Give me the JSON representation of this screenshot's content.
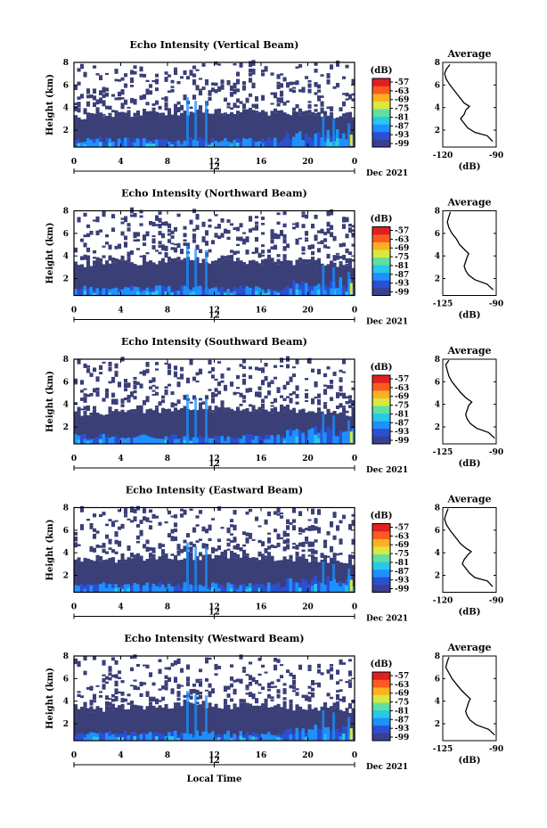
{
  "figure": {
    "xlabel": "Local Time",
    "date_label": "Dec 2021",
    "colorbar_unit": "(dB)",
    "profile_title": "Average",
    "profile_xlabel": "(dB)"
  },
  "chart_data": [
    {
      "type": "heatmap",
      "title": "Echo Intensity (Vertical Beam)",
      "ylabel": "Height (km)",
      "xlabel": "",
      "x_ticks": [
        "0",
        "4",
        "8",
        "12",
        "16",
        "20",
        "0"
      ],
      "x_ticks_values": [
        0,
        4,
        8,
        12,
        16,
        20,
        24
      ],
      "day_ticks": [
        "12"
      ],
      "xlim": [
        0,
        24
      ],
      "y_ticks": [
        "2",
        "4",
        "6",
        "8"
      ],
      "ylim": [
        0.5,
        8
      ],
      "colorbar_ticks": [
        "-57",
        "-63",
        "-69",
        "-75",
        "-81",
        "-87",
        "-93",
        "-99"
      ],
      "profile": {
        "title": "Average",
        "xlabel": "(dB)",
        "x_ticks": [
          "-120",
          "-90"
        ],
        "xlim": [
          -120,
          -90
        ],
        "y_ticks": [
          "2",
          "4",
          "6",
          "8"
        ],
        "ylim": [
          0.5,
          8
        ],
        "values": [
          [
            -92,
            1
          ],
          [
            -95,
            1.5
          ],
          [
            -102,
            1.8
          ],
          [
            -106,
            2.2
          ],
          [
            -108,
            2.6
          ],
          [
            -110,
            3
          ],
          [
            -108,
            3.4
          ],
          [
            -107,
            3.8
          ],
          [
            -105,
            4.1
          ],
          [
            -108,
            4.4
          ],
          [
            -110,
            4.8
          ],
          [
            -112,
            5.2
          ],
          [
            -114,
            5.6
          ],
          [
            -116,
            6
          ],
          [
            -118,
            6.5
          ],
          [
            -119,
            7
          ],
          [
            -118,
            7.4
          ],
          [
            -116,
            7.8
          ]
        ]
      }
    },
    {
      "type": "heatmap",
      "title": "Echo Intensity (Northward Beam)",
      "ylabel": "Height (km)",
      "xlabel": "",
      "x_ticks": [
        "0",
        "4",
        "8",
        "12",
        "16",
        "20",
        "0"
      ],
      "x_ticks_values": [
        0,
        4,
        8,
        12,
        16,
        20,
        24
      ],
      "day_ticks": [
        "12"
      ],
      "xlim": [
        0,
        24
      ],
      "y_ticks": [
        "2",
        "4",
        "6",
        "8"
      ],
      "ylim": [
        0.5,
        8
      ],
      "colorbar_ticks": [
        "-57",
        "-63",
        "-69",
        "-75",
        "-81",
        "-87",
        "-93",
        "-99"
      ],
      "profile": {
        "title": "Average",
        "xlabel": "(dB)",
        "x_ticks": [
          "-125",
          "-90"
        ],
        "xlim": [
          -125,
          -90
        ],
        "y_ticks": [
          "2",
          "4",
          "6",
          "8"
        ],
        "ylim": [
          0.5,
          8
        ],
        "values": [
          [
            -92,
            1
          ],
          [
            -96,
            1.5
          ],
          [
            -104,
            1.9
          ],
          [
            -108,
            2.3
          ],
          [
            -110,
            2.7
          ],
          [
            -111,
            3.1
          ],
          [
            -110,
            3.5
          ],
          [
            -109,
            3.9
          ],
          [
            -108,
            4.2
          ],
          [
            -111,
            4.6
          ],
          [
            -114,
            5
          ],
          [
            -116,
            5.5
          ],
          [
            -119,
            6
          ],
          [
            -121,
            6.5
          ],
          [
            -122,
            7
          ],
          [
            -121,
            7.5
          ],
          [
            -120,
            7.9
          ]
        ]
      }
    },
    {
      "type": "heatmap",
      "title": "Echo Intensity (Southward Beam)",
      "ylabel": "Height (km)",
      "xlabel": "",
      "x_ticks": [
        "0",
        "4",
        "8",
        "12",
        "16",
        "20",
        "0"
      ],
      "x_ticks_values": [
        0,
        4,
        8,
        12,
        16,
        20,
        24
      ],
      "day_ticks": [
        "12"
      ],
      "xlim": [
        0,
        24
      ],
      "y_ticks": [
        "2",
        "4",
        "6",
        "8"
      ],
      "ylim": [
        0.5,
        8
      ],
      "colorbar_ticks": [
        "-57",
        "-63",
        "-69",
        "-75",
        "-81",
        "-87",
        "-93",
        "-99"
      ],
      "profile": {
        "title": "Average",
        "xlabel": "(dB)",
        "x_ticks": [
          "-125",
          "-90"
        ],
        "xlim": [
          -125,
          -90
        ],
        "y_ticks": [
          "2",
          "4",
          "6",
          "8"
        ],
        "ylim": [
          0.5,
          8
        ],
        "values": [
          [
            -91,
            1
          ],
          [
            -95,
            1.5
          ],
          [
            -103,
            1.9
          ],
          [
            -107,
            2.3
          ],
          [
            -109,
            2.7
          ],
          [
            -110,
            3.1
          ],
          [
            -109,
            3.5
          ],
          [
            -108,
            3.9
          ],
          [
            -106,
            4.2
          ],
          [
            -110,
            4.6
          ],
          [
            -113,
            5
          ],
          [
            -116,
            5.5
          ],
          [
            -119,
            6
          ],
          [
            -121,
            6.5
          ],
          [
            -122,
            7
          ],
          [
            -123,
            7.5
          ],
          [
            -121,
            7.9
          ]
        ]
      }
    },
    {
      "type": "heatmap",
      "title": "Echo Intensity (Eastward Beam)",
      "ylabel": "Height (km)",
      "xlabel": "",
      "x_ticks": [
        "0",
        "4",
        "8",
        "12",
        "16",
        "20",
        "0"
      ],
      "x_ticks_values": [
        0,
        4,
        8,
        12,
        16,
        20,
        24
      ],
      "day_ticks": [
        "12"
      ],
      "xlim": [
        0,
        24
      ],
      "y_ticks": [
        "2",
        "4",
        "6",
        "8"
      ],
      "ylim": [
        0.5,
        8
      ],
      "colorbar_ticks": [
        "-57",
        "-63",
        "-69",
        "-75",
        "-81",
        "-87",
        "-93",
        "-99"
      ],
      "profile": {
        "title": "Average",
        "xlabel": "(dB)",
        "x_ticks": [
          "-120",
          "-90"
        ],
        "xlim": [
          -120,
          -90
        ],
        "y_ticks": [
          "2",
          "4",
          "6",
          "8"
        ],
        "ylim": [
          0.5,
          8
        ],
        "values": [
          [
            -92,
            1
          ],
          [
            -95,
            1.5
          ],
          [
            -102,
            1.8
          ],
          [
            -105,
            2.2
          ],
          [
            -107,
            2.6
          ],
          [
            -109,
            3
          ],
          [
            -108,
            3.4
          ],
          [
            -106,
            3.8
          ],
          [
            -104,
            4.1
          ],
          [
            -107,
            4.4
          ],
          [
            -110,
            4.8
          ],
          [
            -112,
            5.2
          ],
          [
            -114,
            5.6
          ],
          [
            -116,
            6
          ],
          [
            -118,
            6.5
          ],
          [
            -119,
            7
          ],
          [
            -118,
            7.5
          ],
          [
            -117,
            7.9
          ]
        ]
      }
    },
    {
      "type": "heatmap",
      "title": "Echo Intensity (Westward Beam)",
      "ylabel": "Height (km)",
      "xlabel": "Local Time",
      "x_ticks": [
        "0",
        "4",
        "8",
        "12",
        "16",
        "20",
        "0"
      ],
      "x_ticks_values": [
        0,
        4,
        8,
        12,
        16,
        20,
        24
      ],
      "day_ticks": [
        "12"
      ],
      "xlim": [
        0,
        24
      ],
      "y_ticks": [
        "2",
        "4",
        "6",
        "8"
      ],
      "ylim": [
        0.5,
        8
      ],
      "colorbar_ticks": [
        "-57",
        "-63",
        "-69",
        "-75",
        "-81",
        "-87",
        "-93",
        "-99"
      ],
      "profile": {
        "title": "Average",
        "xlabel": "(dB)",
        "x_ticks": [
          "-125",
          "-90"
        ],
        "xlim": [
          -125,
          -90
        ],
        "y_ticks": [
          "2",
          "4",
          "6",
          "8"
        ],
        "ylim": [
          0.5,
          8
        ],
        "values": [
          [
            -91,
            1
          ],
          [
            -95,
            1.5
          ],
          [
            -103,
            1.9
          ],
          [
            -107,
            2.3
          ],
          [
            -109,
            2.7
          ],
          [
            -110,
            3.1
          ],
          [
            -109,
            3.5
          ],
          [
            -108,
            3.9
          ],
          [
            -107,
            4.2
          ],
          [
            -110,
            4.6
          ],
          [
            -113,
            5
          ],
          [
            -116,
            5.5
          ],
          [
            -119,
            6
          ],
          [
            -121,
            6.5
          ],
          [
            -123,
            7
          ],
          [
            -122,
            7.5
          ],
          [
            -121,
            7.9
          ]
        ]
      }
    }
  ],
  "colors": {
    "background_echo": "#3a3f78",
    "colormap": [
      "#3a3f8f",
      "#2b4fd0",
      "#1e90ff",
      "#28c8e8",
      "#5fe0a0",
      "#d8e840",
      "#ffb020",
      "#ff5a20",
      "#e02020"
    ]
  }
}
